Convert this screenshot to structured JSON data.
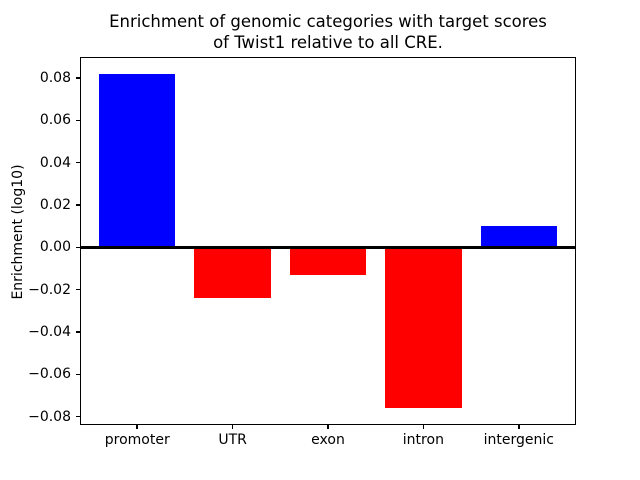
{
  "figure": {
    "title_lines": [
      "Enrichment of genomic categories with target scores",
      "of Twist1 relative to all CRE."
    ]
  },
  "chart_data": {
    "type": "bar",
    "title": "Enrichment of genomic categories with target scores\nof Twist1 relative to all CRE.",
    "xlabel": "",
    "ylabel": "Enrichment (log10)",
    "categories": [
      "promoter",
      "UTR",
      "exon",
      "intron",
      "intergenic"
    ],
    "values": [
      0.082,
      -0.024,
      -0.013,
      -0.076,
      0.01
    ],
    "yticks": [
      -0.08,
      -0.06,
      -0.04,
      -0.02,
      0.0,
      0.02,
      0.04,
      0.06,
      0.08
    ],
    "ytick_labels": [
      "−0.08",
      "−0.06",
      "−0.04",
      "−0.02",
      "0.00",
      "0.02",
      "0.04",
      "0.06",
      "0.08"
    ],
    "ylim": [
      -0.0839,
      0.0899
    ],
    "xlim": [
      -0.6,
      4.6
    ],
    "bar_width": 0.8,
    "positive_color": "#0000ff",
    "negative_color": "#ff0000",
    "axis_color": "#000000",
    "background_color": "#ffffff",
    "zero_line": true,
    "grid": false,
    "legend": false
  }
}
